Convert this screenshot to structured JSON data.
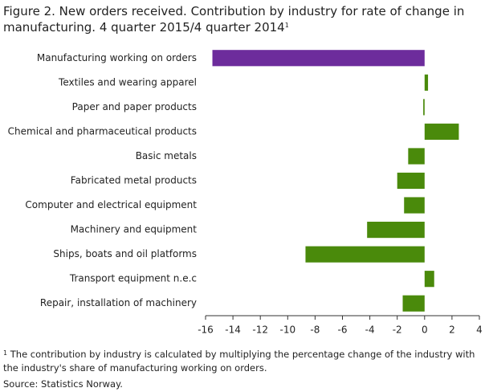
{
  "chart_data": {
    "type": "bar",
    "orientation": "horizontal",
    "title": "Figure 2. New orders received. Contribution by industry for rate of change in manufacturing. 4 quarter 2015/4 quarter 2014",
    "title_note_mark": "1",
    "categories": [
      "Manufacturing working on orders",
      "Textiles and wearing apparel",
      "Paper and paper products",
      "Chemical and pharmaceutical products",
      "Basic metals",
      "Fabricated metal products",
      "Computer and electrical equipment",
      "Machinery and equipment",
      "Ships, boats and oil platforms",
      "Transport equipment n.e.c",
      "Repair, installation of machinery"
    ],
    "values": [
      -15.5,
      0.25,
      -0.1,
      2.5,
      -1.2,
      -2.0,
      -1.5,
      -4.2,
      -8.7,
      0.7,
      -1.6
    ],
    "colors": [
      "#6d2c9c",
      "#4a8a0b",
      "#4a8a0b",
      "#4a8a0b",
      "#4a8a0b",
      "#4a8a0b",
      "#4a8a0b",
      "#4a8a0b",
      "#4a8a0b",
      "#4a8a0b",
      "#4a8a0b"
    ],
    "xlim": [
      -16,
      4
    ],
    "xticks": [
      -16,
      -14,
      -12,
      -10,
      -8,
      -6,
      -4,
      -2,
      0,
      2,
      4
    ],
    "footnote_mark": "1",
    "footnote": "The contribution  by industry is calculated by multiplying  the percentage change of the industry with the industry's share of manufacturing working on orders.",
    "source": "Source: Statistics Norway."
  }
}
